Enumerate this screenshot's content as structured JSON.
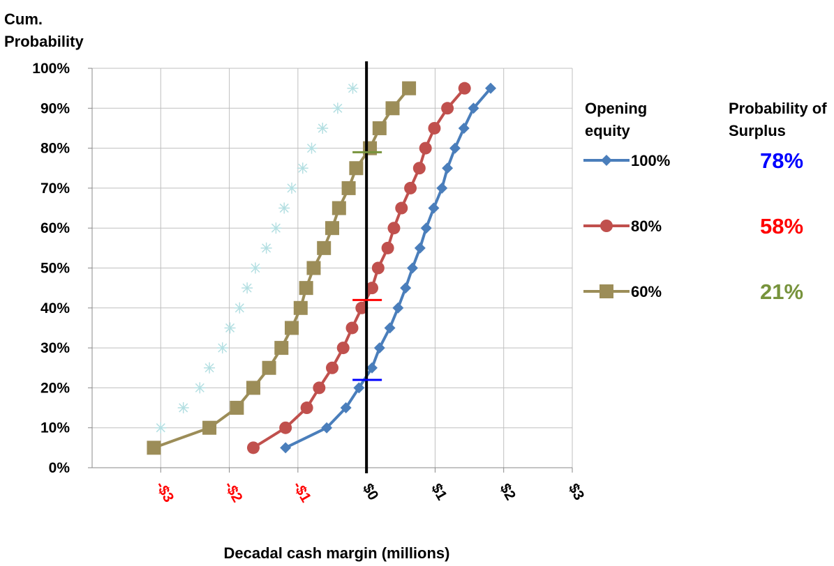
{
  "chart_data": {
    "type": "line",
    "y_label": "Cum. Probability",
    "x_label": "Decadal cash margin (millions)",
    "legend_title": "Opening equity",
    "summary_title": "Probability of Surplus",
    "xlim": [
      -4,
      3
    ],
    "ylim": [
      0,
      100
    ],
    "xticks": [
      {
        "value": -3,
        "label": "-$3"
      },
      {
        "value": -2,
        "label": "-$2"
      },
      {
        "value": -1,
        "label": "-$1"
      },
      {
        "value": 0,
        "label": "$0"
      },
      {
        "value": 1,
        "label": "$1"
      },
      {
        "value": 2,
        "label": "$2"
      },
      {
        "value": 3,
        "label": "$3"
      }
    ],
    "yticks": [
      {
        "value": 0,
        "label": "0%"
      },
      {
        "value": 10,
        "label": "10%"
      },
      {
        "value": 20,
        "label": "20%"
      },
      {
        "value": 30,
        "label": "30%"
      },
      {
        "value": 40,
        "label": "40%"
      },
      {
        "value": 50,
        "label": "50%"
      },
      {
        "value": 60,
        "label": "60%"
      },
      {
        "value": 70,
        "label": "70%"
      },
      {
        "value": 80,
        "label": "80%"
      },
      {
        "value": 90,
        "label": "90%"
      },
      {
        "value": 100,
        "label": "100%"
      }
    ],
    "grid": true,
    "vline": 0,
    "series": [
      {
        "name": "100%",
        "color": "#4a7ebb",
        "marker": "diamond",
        "x": [
          -1.18,
          -0.58,
          -0.3,
          -0.11,
          0.08,
          0.19,
          0.34,
          0.46,
          0.57,
          0.67,
          0.78,
          0.87,
          0.98,
          1.1,
          1.18,
          1.29,
          1.42,
          1.56,
          1.81
        ],
        "y": [
          5,
          10,
          15,
          20,
          25,
          30,
          35,
          40,
          45,
          50,
          55,
          60,
          65,
          70,
          75,
          80,
          85,
          90,
          95
        ],
        "surplus": {
          "value": 78,
          "label": "78%"
        },
        "surplus_color": "#0000ff",
        "breakeven": 22
      },
      {
        "name": "80%",
        "color": "#c0504d",
        "marker": "circle",
        "x": [
          -1.65,
          -1.18,
          -0.87,
          -0.69,
          -0.5,
          -0.34,
          -0.21,
          -0.07,
          0.08,
          0.17,
          0.31,
          0.4,
          0.51,
          0.64,
          0.77,
          0.86,
          0.99,
          1.18,
          1.43
        ],
        "y": [
          5,
          10,
          15,
          20,
          25,
          30,
          35,
          40,
          45,
          50,
          55,
          60,
          65,
          70,
          75,
          80,
          85,
          90,
          95
        ],
        "surplus": {
          "value": 58,
          "label": "58%"
        },
        "surplus_color": "#ff0000",
        "breakeven": 42
      },
      {
        "name": "60%",
        "color": "#9c8d58",
        "marker": "square",
        "x": [
          -3.1,
          -2.29,
          -1.89,
          -1.65,
          -1.42,
          -1.24,
          -1.09,
          -0.96,
          -0.88,
          -0.77,
          -0.62,
          -0.5,
          -0.4,
          -0.26,
          -0.15,
          0.05,
          0.19,
          0.38,
          0.62
        ],
        "y": [
          5,
          10,
          15,
          20,
          25,
          30,
          35,
          40,
          45,
          50,
          55,
          60,
          65,
          70,
          75,
          80,
          85,
          90,
          95
        ],
        "surplus": {
          "value": 21,
          "label": "21%"
        },
        "surplus_color": "#77933c",
        "breakeven": 79
      },
      {
        "color": "#b4dfe2",
        "marker": "asterisk",
        "x": [
          null,
          -3.0,
          -2.67,
          -2.43,
          -2.29,
          -2.1,
          -1.99,
          -1.85,
          -1.74,
          -1.62,
          -1.46,
          -1.32,
          -1.2,
          -1.09,
          -0.93,
          -0.8,
          -0.64,
          -0.42,
          -0.2
        ],
        "y": [
          5,
          10,
          15,
          20,
          25,
          30,
          35,
          40,
          45,
          50,
          55,
          60,
          65,
          70,
          75,
          80,
          85,
          90,
          95
        ]
      }
    ]
  }
}
